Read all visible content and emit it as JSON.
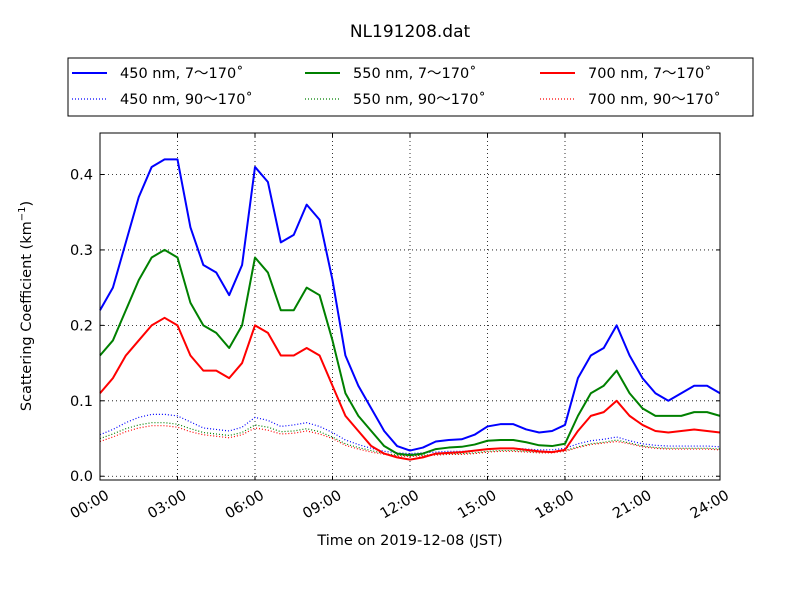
{
  "chart_data": {
    "type": "line",
    "title": "NL191208.dat",
    "xlabel": "Time on 2019-12-08 (JST)",
    "ylabel": "Scattering Coefficient (km⁻¹)",
    "ylabel_base": "Scattering Coefficient (km",
    "ylabel_exp": "−1",
    "ylabel_close": ")",
    "xlim": [
      0,
      24
    ],
    "ylim": [
      -0.005,
      0.455
    ],
    "x_ticks": [
      0,
      3,
      6,
      9,
      12,
      15,
      18,
      21,
      24
    ],
    "x_tick_labels": [
      "00:00",
      "03:00",
      "06:00",
      "09:00",
      "12:00",
      "15:00",
      "18:00",
      "21:00",
      "24:00"
    ],
    "y_ticks": [
      0.0,
      0.1,
      0.2,
      0.3,
      0.4
    ],
    "y_tick_labels": [
      "0.0",
      "0.1",
      "0.2",
      "0.3",
      "0.4"
    ],
    "grid": true,
    "legend_position": "top",
    "series": [
      {
        "name": "450 nm, 7～170˚",
        "color": "#0000ff",
        "style": "solid",
        "x": [
          0,
          0.5,
          1,
          1.5,
          2,
          2.5,
          3,
          3.5,
          4,
          4.5,
          5,
          5.5,
          6,
          6.5,
          7,
          7.5,
          8,
          8.5,
          9,
          9.5,
          10,
          10.5,
          11,
          11.5,
          12,
          12.5,
          13,
          13.5,
          14,
          14.5,
          15,
          15.5,
          16,
          16.5,
          17,
          17.5,
          18,
          18.5,
          19,
          19.5,
          20,
          20.5,
          21,
          21.5,
          22,
          22.5,
          23,
          23.5,
          24
        ],
        "y": [
          0.22,
          0.25,
          0.31,
          0.37,
          0.41,
          0.42,
          0.42,
          0.33,
          0.28,
          0.27,
          0.24,
          0.28,
          0.41,
          0.39,
          0.31,
          0.32,
          0.36,
          0.34,
          0.26,
          0.16,
          0.12,
          0.09,
          0.06,
          0.04,
          0.034,
          0.038,
          0.046,
          0.048,
          0.049,
          0.055,
          0.066,
          0.069,
          0.069,
          0.062,
          0.058,
          0.06,
          0.068,
          0.13,
          0.16,
          0.17,
          0.2,
          0.16,
          0.13,
          0.11,
          0.1,
          0.11,
          0.12,
          0.12,
          0.11
        ]
      },
      {
        "name": "450 nm, 90～170˚",
        "color": "#0000ff",
        "style": "dotted",
        "x": [
          0,
          0.5,
          1,
          1.5,
          2,
          2.5,
          3,
          3.5,
          4,
          4.5,
          5,
          5.5,
          6,
          6.5,
          7,
          7.5,
          8,
          8.5,
          9,
          9.5,
          10,
          10.5,
          11,
          11.5,
          12,
          12.5,
          13,
          13.5,
          14,
          14.5,
          15,
          15.5,
          16,
          16.5,
          17,
          17.5,
          18,
          18.5,
          19,
          19.5,
          20,
          20.5,
          21,
          21.5,
          22,
          22.5,
          23,
          23.5,
          24
        ],
        "y": [
          0.055,
          0.062,
          0.071,
          0.078,
          0.082,
          0.082,
          0.08,
          0.072,
          0.064,
          0.062,
          0.06,
          0.065,
          0.078,
          0.074,
          0.066,
          0.068,
          0.071,
          0.066,
          0.058,
          0.048,
          0.042,
          0.037,
          0.033,
          0.031,
          0.03,
          0.031,
          0.032,
          0.033,
          0.033,
          0.034,
          0.036,
          0.037,
          0.037,
          0.036,
          0.035,
          0.035,
          0.037,
          0.043,
          0.047,
          0.049,
          0.052,
          0.047,
          0.043,
          0.041,
          0.04,
          0.04,
          0.04,
          0.04,
          0.039
        ]
      },
      {
        "name": "550 nm, 7～170˚",
        "color": "#008000",
        "style": "solid",
        "x": [
          0,
          0.5,
          1,
          1.5,
          2,
          2.5,
          3,
          3.5,
          4,
          4.5,
          5,
          5.5,
          6,
          6.5,
          7,
          7.5,
          8,
          8.5,
          9,
          9.5,
          10,
          10.5,
          11,
          11.5,
          12,
          12.5,
          13,
          13.5,
          14,
          14.5,
          15,
          15.5,
          16,
          16.5,
          17,
          17.5,
          18,
          18.5,
          19,
          19.5,
          20,
          20.5,
          21,
          21.5,
          22,
          22.5,
          23,
          23.5,
          24
        ],
        "y": [
          0.16,
          0.18,
          0.22,
          0.26,
          0.29,
          0.3,
          0.29,
          0.23,
          0.2,
          0.19,
          0.17,
          0.2,
          0.29,
          0.27,
          0.22,
          0.22,
          0.25,
          0.24,
          0.18,
          0.11,
          0.08,
          0.06,
          0.04,
          0.03,
          0.028,
          0.03,
          0.036,
          0.038,
          0.039,
          0.042,
          0.047,
          0.048,
          0.048,
          0.045,
          0.041,
          0.04,
          0.043,
          0.08,
          0.11,
          0.12,
          0.14,
          0.11,
          0.09,
          0.08,
          0.08,
          0.08,
          0.085,
          0.085,
          0.08
        ]
      },
      {
        "name": "550 nm, 90～170˚",
        "color": "#008000",
        "style": "dotted",
        "x": [
          0,
          0.5,
          1,
          1.5,
          2,
          2.5,
          3,
          3.5,
          4,
          4.5,
          5,
          5.5,
          6,
          6.5,
          7,
          7.5,
          8,
          8.5,
          9,
          9.5,
          10,
          10.5,
          11,
          11.5,
          12,
          12.5,
          13,
          13.5,
          14,
          14.5,
          15,
          15.5,
          16,
          16.5,
          17,
          17.5,
          18,
          18.5,
          19,
          19.5,
          20,
          20.5,
          21,
          21.5,
          22,
          22.5,
          23,
          23.5,
          24
        ],
        "y": [
          0.05,
          0.056,
          0.063,
          0.068,
          0.071,
          0.071,
          0.069,
          0.063,
          0.058,
          0.056,
          0.054,
          0.058,
          0.068,
          0.065,
          0.059,
          0.06,
          0.063,
          0.059,
          0.052,
          0.043,
          0.038,
          0.034,
          0.03,
          0.028,
          0.027,
          0.028,
          0.029,
          0.03,
          0.03,
          0.031,
          0.033,
          0.034,
          0.034,
          0.033,
          0.032,
          0.032,
          0.034,
          0.039,
          0.043,
          0.045,
          0.048,
          0.044,
          0.04,
          0.038,
          0.037,
          0.037,
          0.037,
          0.037,
          0.036
        ]
      },
      {
        "name": "700 nm, 7～170˚",
        "color": "#ff0000",
        "style": "solid",
        "x": [
          0,
          0.5,
          1,
          1.5,
          2,
          2.5,
          3,
          3.5,
          4,
          4.5,
          5,
          5.5,
          6,
          6.5,
          7,
          7.5,
          8,
          8.5,
          9,
          9.5,
          10,
          10.5,
          11,
          11.5,
          12,
          12.5,
          13,
          13.5,
          14,
          14.5,
          15,
          15.5,
          16,
          16.5,
          17,
          17.5,
          18,
          18.5,
          19,
          19.5,
          20,
          20.5,
          21,
          21.5,
          22,
          22.5,
          23,
          23.5,
          24
        ],
        "y": [
          0.11,
          0.13,
          0.16,
          0.18,
          0.2,
          0.21,
          0.2,
          0.16,
          0.14,
          0.14,
          0.13,
          0.15,
          0.2,
          0.19,
          0.16,
          0.16,
          0.17,
          0.16,
          0.12,
          0.08,
          0.06,
          0.04,
          0.03,
          0.025,
          0.022,
          0.025,
          0.03,
          0.031,
          0.032,
          0.034,
          0.036,
          0.037,
          0.037,
          0.035,
          0.033,
          0.032,
          0.035,
          0.06,
          0.08,
          0.085,
          0.1,
          0.08,
          0.068,
          0.06,
          0.058,
          0.06,
          0.062,
          0.06,
          0.058
        ]
      },
      {
        "name": "700 nm, 90～170˚",
        "color": "#ff0000",
        "style": "dotted",
        "x": [
          0,
          0.5,
          1,
          1.5,
          2,
          2.5,
          3,
          3.5,
          4,
          4.5,
          5,
          5.5,
          6,
          6.5,
          7,
          7.5,
          8,
          8.5,
          9,
          9.5,
          10,
          10.5,
          11,
          11.5,
          12,
          12.5,
          13,
          13.5,
          14,
          14.5,
          15,
          15.5,
          16,
          16.5,
          17,
          17.5,
          18,
          18.5,
          19,
          19.5,
          20,
          20.5,
          21,
          21.5,
          22,
          22.5,
          23,
          23.5,
          24
        ],
        "y": [
          0.046,
          0.052,
          0.059,
          0.064,
          0.067,
          0.067,
          0.065,
          0.059,
          0.055,
          0.053,
          0.051,
          0.055,
          0.064,
          0.061,
          0.056,
          0.057,
          0.06,
          0.056,
          0.05,
          0.041,
          0.036,
          0.032,
          0.029,
          0.027,
          0.026,
          0.027,
          0.028,
          0.029,
          0.029,
          0.03,
          0.032,
          0.033,
          0.033,
          0.032,
          0.031,
          0.031,
          0.033,
          0.038,
          0.042,
          0.044,
          0.046,
          0.043,
          0.039,
          0.037,
          0.036,
          0.036,
          0.036,
          0.036,
          0.035
        ]
      }
    ]
  }
}
